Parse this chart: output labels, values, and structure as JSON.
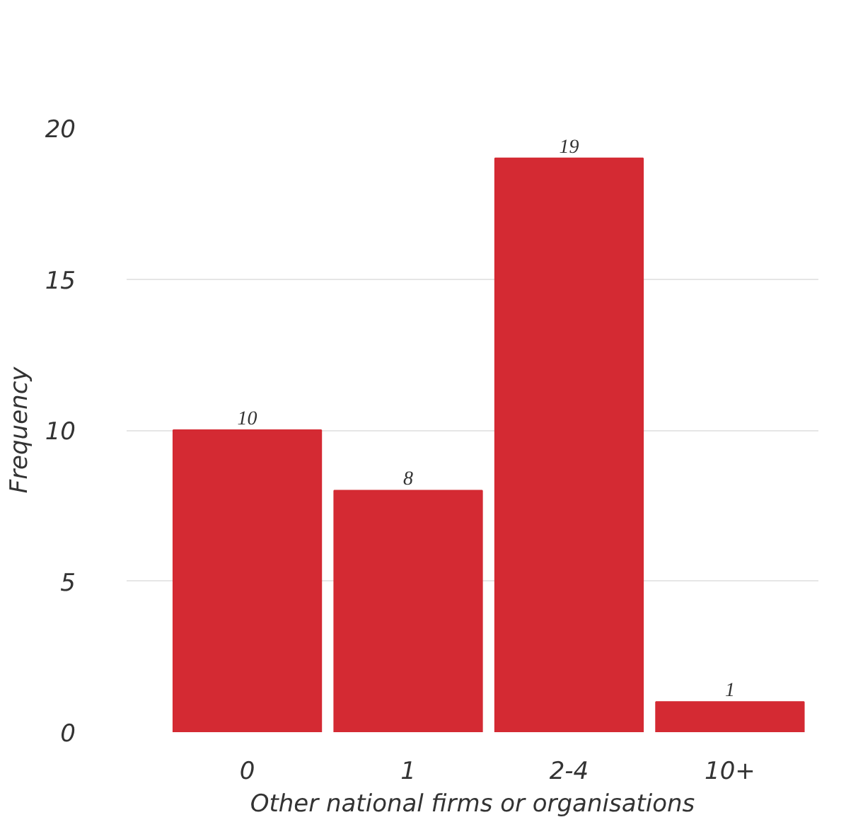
{
  "chart_data": {
    "type": "bar",
    "xlabel": "Other national firms or organisations",
    "ylabel": "Frequency",
    "categories": [
      "0",
      "1",
      "2-4",
      "10+"
    ],
    "values": [
      10,
      8,
      19,
      1
    ],
    "color": "#d42a33",
    "ylim": [
      0,
      20
    ],
    "yticks": [
      0,
      5,
      10,
      15,
      20
    ],
    "grid": "y",
    "data_labels": true
  }
}
